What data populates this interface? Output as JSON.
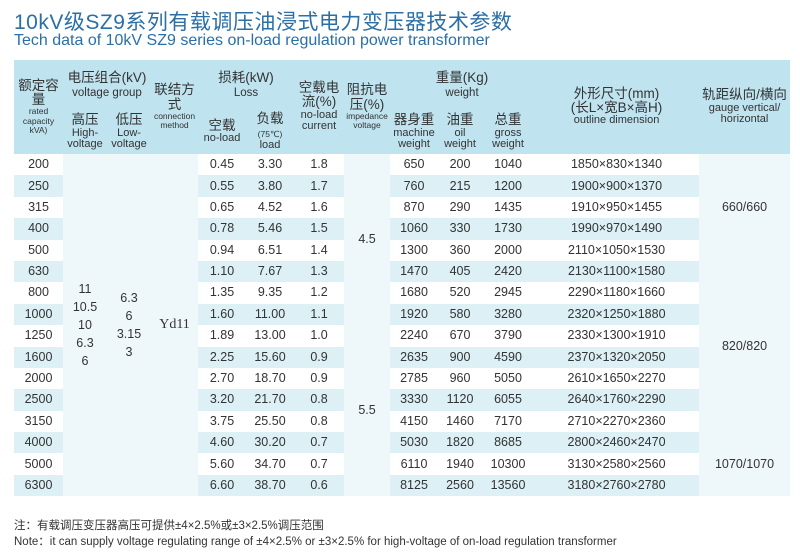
{
  "title_cn": "10kV级SZ9系列有载调压油浸式电力变压器技术参数",
  "title_en": "Tech data of 10kV SZ9 series on-load regulation power transformer",
  "headers": {
    "capacity": {
      "cn": "额定容量",
      "en": "rated capacity kVA)"
    },
    "voltage": {
      "cn": "电压组合(kV)",
      "en": "voltage group"
    },
    "high": {
      "cn": "高压",
      "en": "High-voltage"
    },
    "low": {
      "cn": "低压",
      "en": "Low-voltage"
    },
    "connection": {
      "cn": "联结方式",
      "en": "connection method"
    },
    "loss": {
      "cn": "损耗(kW)",
      "en": "Loss"
    },
    "noload": {
      "cn": "空载",
      "en": "no-load"
    },
    "load": {
      "cn": "负载",
      "en": "load",
      "temp": "(75℃)"
    },
    "current": {
      "cn": "空载电流(%)",
      "en": "no-load current"
    },
    "impedance": {
      "cn": "阻抗电压(%)",
      "en": "impedance voltage"
    },
    "weight": {
      "cn": "重量(Kg)",
      "en": "weight"
    },
    "machine": {
      "cn": "器身重",
      "en": "machine weight"
    },
    "oil": {
      "cn": "油重",
      "en": "oil weight"
    },
    "gross": {
      "cn": "总重",
      "en": "gross weight"
    },
    "outline": {
      "cn1": "外形尺寸(mm)",
      "cn2": "(长L×宽B×高H)",
      "en": "outline dimension"
    },
    "gauge": {
      "cn": "轨距纵向/横向",
      "en": "gauge vertical/ horizontal"
    }
  },
  "merged": {
    "high_values": [
      "11",
      "10.5",
      "10",
      "6.3",
      "6"
    ],
    "low_values": [
      "6.3",
      "6",
      "3.15",
      "3"
    ],
    "connection": "Yd11",
    "impedance_a": "4.5",
    "impedance_b": "5.5",
    "gauge_a": "660/660",
    "gauge_b": "820/820",
    "gauge_c": "1070/1070"
  },
  "rows": [
    {
      "cap": "200",
      "noload": "0.45",
      "load": "3.30",
      "current": "1.8",
      "machine": "650",
      "oil": "200",
      "gross": "1040",
      "dim": "1850×830×1340"
    },
    {
      "cap": "250",
      "noload": "0.55",
      "load": "3.80",
      "current": "1.7",
      "machine": "760",
      "oil": "215",
      "gross": "1200",
      "dim": "1900×900×1370"
    },
    {
      "cap": "315",
      "noload": "0.65",
      "load": "4.52",
      "current": "1.6",
      "machine": "870",
      "oil": "290",
      "gross": "1435",
      "dim": "1910×950×1455"
    },
    {
      "cap": "400",
      "noload": "0.78",
      "load": "5.46",
      "current": "1.5",
      "machine": "1060",
      "oil": "330",
      "gross": "1730",
      "dim": "1990×970×1490"
    },
    {
      "cap": "500",
      "noload": "0.94",
      "load": "6.51",
      "current": "1.4",
      "machine": "1300",
      "oil": "360",
      "gross": "2000",
      "dim": "2110×1050×1530"
    },
    {
      "cap": "630",
      "noload": "1.10",
      "load": "7.67",
      "current": "1.3",
      "machine": "1470",
      "oil": "405",
      "gross": "2420",
      "dim": "2130×1100×1580"
    },
    {
      "cap": "800",
      "noload": "1.35",
      "load": "9.35",
      "current": "1.2",
      "machine": "1680",
      "oil": "520",
      "gross": "2945",
      "dim": "2290×1180×1660"
    },
    {
      "cap": "1000",
      "noload": "1.60",
      "load": "11.00",
      "current": "1.1",
      "machine": "1920",
      "oil": "580",
      "gross": "3280",
      "dim": "2320×1250×1880"
    },
    {
      "cap": "1250",
      "noload": "1.89",
      "load": "13.00",
      "current": "1.0",
      "machine": "2240",
      "oil": "670",
      "gross": "3790",
      "dim": "2330×1300×1910"
    },
    {
      "cap": "1600",
      "noload": "2.25",
      "load": "15.60",
      "current": "0.9",
      "machine": "2635",
      "oil": "900",
      "gross": "4590",
      "dim": "2370×1320×2050"
    },
    {
      "cap": "2000",
      "noload": "2.70",
      "load": "18.70",
      "current": "0.9",
      "machine": "2785",
      "oil": "960",
      "gross": "5050",
      "dim": "2610×1650×2270"
    },
    {
      "cap": "2500",
      "noload": "3.20",
      "load": "21.70",
      "current": "0.8",
      "machine": "3330",
      "oil": "1120",
      "gross": "6055",
      "dim": "2640×1760×2290"
    },
    {
      "cap": "3150",
      "noload": "3.75",
      "load": "25.50",
      "current": "0.8",
      "machine": "4150",
      "oil": "1460",
      "gross": "7170",
      "dim": "2710×2270×2360"
    },
    {
      "cap": "4000",
      "noload": "4.60",
      "load": "30.20",
      "current": "0.7",
      "machine": "5030",
      "oil": "1820",
      "gross": "8685",
      "dim": "2800×2460×2470"
    },
    {
      "cap": "5000",
      "noload": "5.60",
      "load": "34.70",
      "current": "0.7",
      "machine": "6110",
      "oil": "1940",
      "gross": "10300",
      "dim": "3130×2580×2560"
    },
    {
      "cap": "6300",
      "noload": "6.60",
      "load": "38.70",
      "current": "0.6",
      "machine": "8125",
      "oil": "2560",
      "gross": "13560",
      "dim": "3180×2760×2780"
    }
  ],
  "note_cn": "注：有载调压变压器高压可提供±4×2.5%或±3×2.5%调压范围",
  "note_en": "Note：it can supply voltage regulating range of ±4×2.5% or ±3×2.5% for high-voltage of on-load regulation transformer"
}
